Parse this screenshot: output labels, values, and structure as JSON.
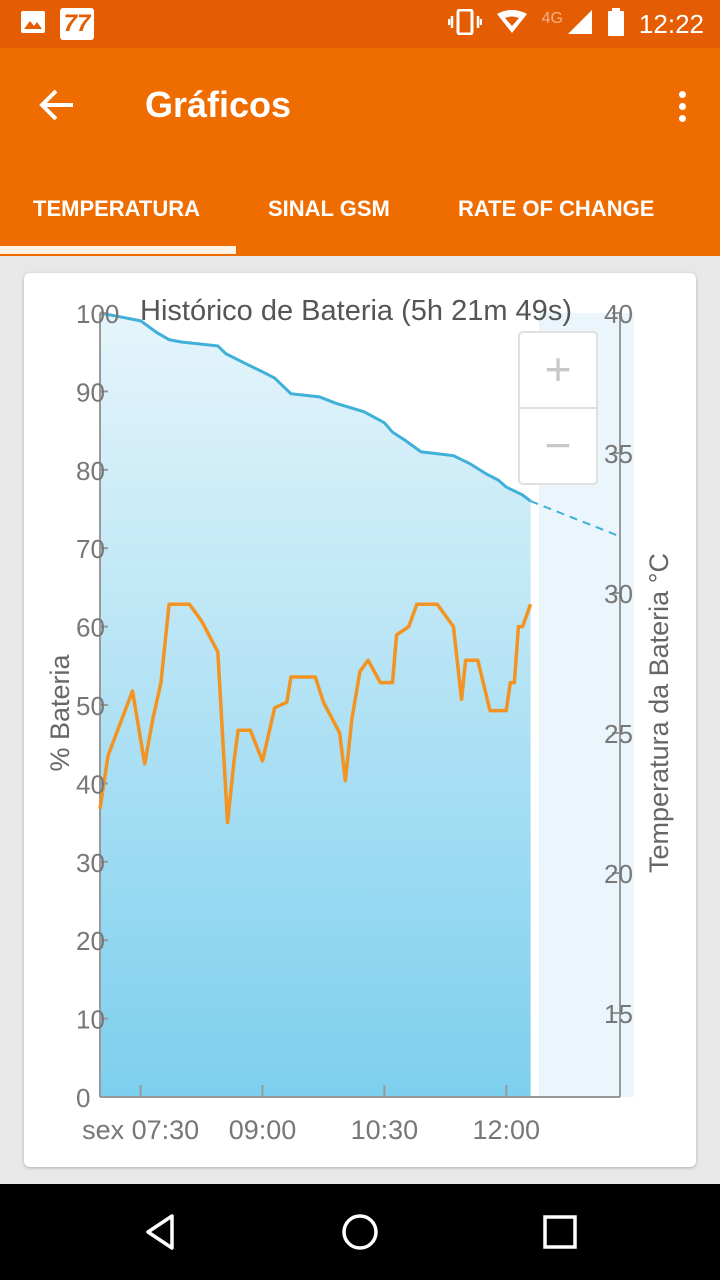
{
  "status_bar": {
    "badge": "77",
    "network": "4G",
    "time": "12:22",
    "icons": [
      "image-icon",
      "calendar-badge-icon",
      "vibrate-icon",
      "wifi-icon",
      "signal-icon",
      "battery-icon"
    ]
  },
  "app_bar": {
    "title": "Gráficos",
    "back_icon": "arrow-back-icon",
    "menu_icon": "more-vert-icon",
    "tabs": [
      {
        "label": "TEMPERATURA",
        "selected": true
      },
      {
        "label": "SINAL GSM",
        "selected": false
      },
      {
        "label": "RATE OF CHANGE",
        "selected": false
      }
    ]
  },
  "colors": {
    "status_bar": "#e45d03",
    "app_bar": "#ef6c00",
    "battery_line": "#3fb0d8",
    "temperature_line": "#f39322",
    "fill_top": "#e6f5fb",
    "fill_bottom": "#7ccfee"
  },
  "zoom": {
    "in_label": "+",
    "out_label": "−"
  },
  "chart_data": {
    "type": "line",
    "title": "Histórico de Bateria (5h 21m 49s)",
    "ylabel": "% Bateria",
    "y2label": "Temperatura da Bateria °C",
    "ylim": [
      0,
      100
    ],
    "y2lim": [
      12,
      40
    ],
    "yticks": [
      "0",
      "10",
      "20",
      "30",
      "40",
      "50",
      "60",
      "70",
      "80",
      "90",
      "100"
    ],
    "y2ticks": [
      "15",
      "20",
      "25",
      "30",
      "35",
      "40"
    ],
    "xticks": [
      {
        "label": "sex 07:30",
        "t": 7.5
      },
      {
        "label": "09:00",
        "t": 9.0
      },
      {
        "label": "10:30",
        "t": 10.5
      },
      {
        "label": "12:00",
        "t": 12.0
      }
    ],
    "xlim": [
      7.0,
      13.4
    ],
    "grid": false,
    "series": [
      {
        "axis": "left",
        "points": [
          [
            7.0,
            100
          ],
          [
            7.5,
            99
          ],
          [
            7.7,
            97.5
          ],
          [
            7.85,
            96.6
          ],
          [
            8.0,
            96.3
          ],
          [
            8.45,
            95.8
          ],
          [
            8.55,
            94.8
          ],
          [
            8.8,
            93.5
          ],
          [
            9.0,
            92.5
          ],
          [
            9.15,
            91.7
          ],
          [
            9.35,
            89.7
          ],
          [
            9.7,
            89.3
          ],
          [
            9.9,
            88.5
          ],
          [
            10.25,
            87.4
          ],
          [
            10.5,
            86
          ],
          [
            10.6,
            84.8
          ],
          [
            10.75,
            83.8
          ],
          [
            10.95,
            82.3
          ],
          [
            11.35,
            81.8
          ],
          [
            11.55,
            80.8
          ],
          [
            11.75,
            79.5
          ],
          [
            11.9,
            78.7
          ],
          [
            12.0,
            77.8
          ],
          [
            12.2,
            76.8
          ],
          [
            12.3,
            76
          ]
        ],
        "projection": [
          [
            12.3,
            76
          ],
          [
            13.4,
            71.5
          ]
        ]
      },
      {
        "axis": "right",
        "points": [
          [
            7.0,
            22.3
          ],
          [
            7.1,
            24.2
          ],
          [
            7.4,
            26.5
          ],
          [
            7.55,
            23.9
          ],
          [
            7.65,
            25.5
          ],
          [
            7.75,
            26.8
          ],
          [
            7.85,
            29.6
          ],
          [
            8.1,
            29.6
          ],
          [
            8.25,
            29
          ],
          [
            8.45,
            27.9
          ],
          [
            8.57,
            21.8
          ],
          [
            8.65,
            24
          ],
          [
            8.7,
            25.1
          ],
          [
            8.85,
            25.1
          ],
          [
            9.0,
            24
          ],
          [
            9.15,
            25.9
          ],
          [
            9.3,
            26.1
          ],
          [
            9.35,
            27
          ],
          [
            9.65,
            27
          ],
          [
            9.75,
            26.1
          ],
          [
            9.95,
            25
          ],
          [
            10.02,
            23.3
          ],
          [
            10.1,
            25.5
          ],
          [
            10.2,
            27.2
          ],
          [
            10.3,
            27.6
          ],
          [
            10.45,
            26.8
          ],
          [
            10.6,
            26.8
          ],
          [
            10.65,
            28.5
          ],
          [
            10.8,
            28.8
          ],
          [
            10.9,
            29.6
          ],
          [
            11.15,
            29.6
          ],
          [
            11.35,
            28.8
          ],
          [
            11.45,
            26.2
          ],
          [
            11.5,
            27.6
          ],
          [
            11.65,
            27.6
          ],
          [
            11.8,
            25.8
          ],
          [
            12.0,
            25.8
          ],
          [
            12.05,
            26.8
          ],
          [
            12.1,
            26.8
          ],
          [
            12.15,
            28.8
          ],
          [
            12.2,
            28.8
          ],
          [
            12.3,
            29.6
          ]
        ]
      }
    ]
  }
}
